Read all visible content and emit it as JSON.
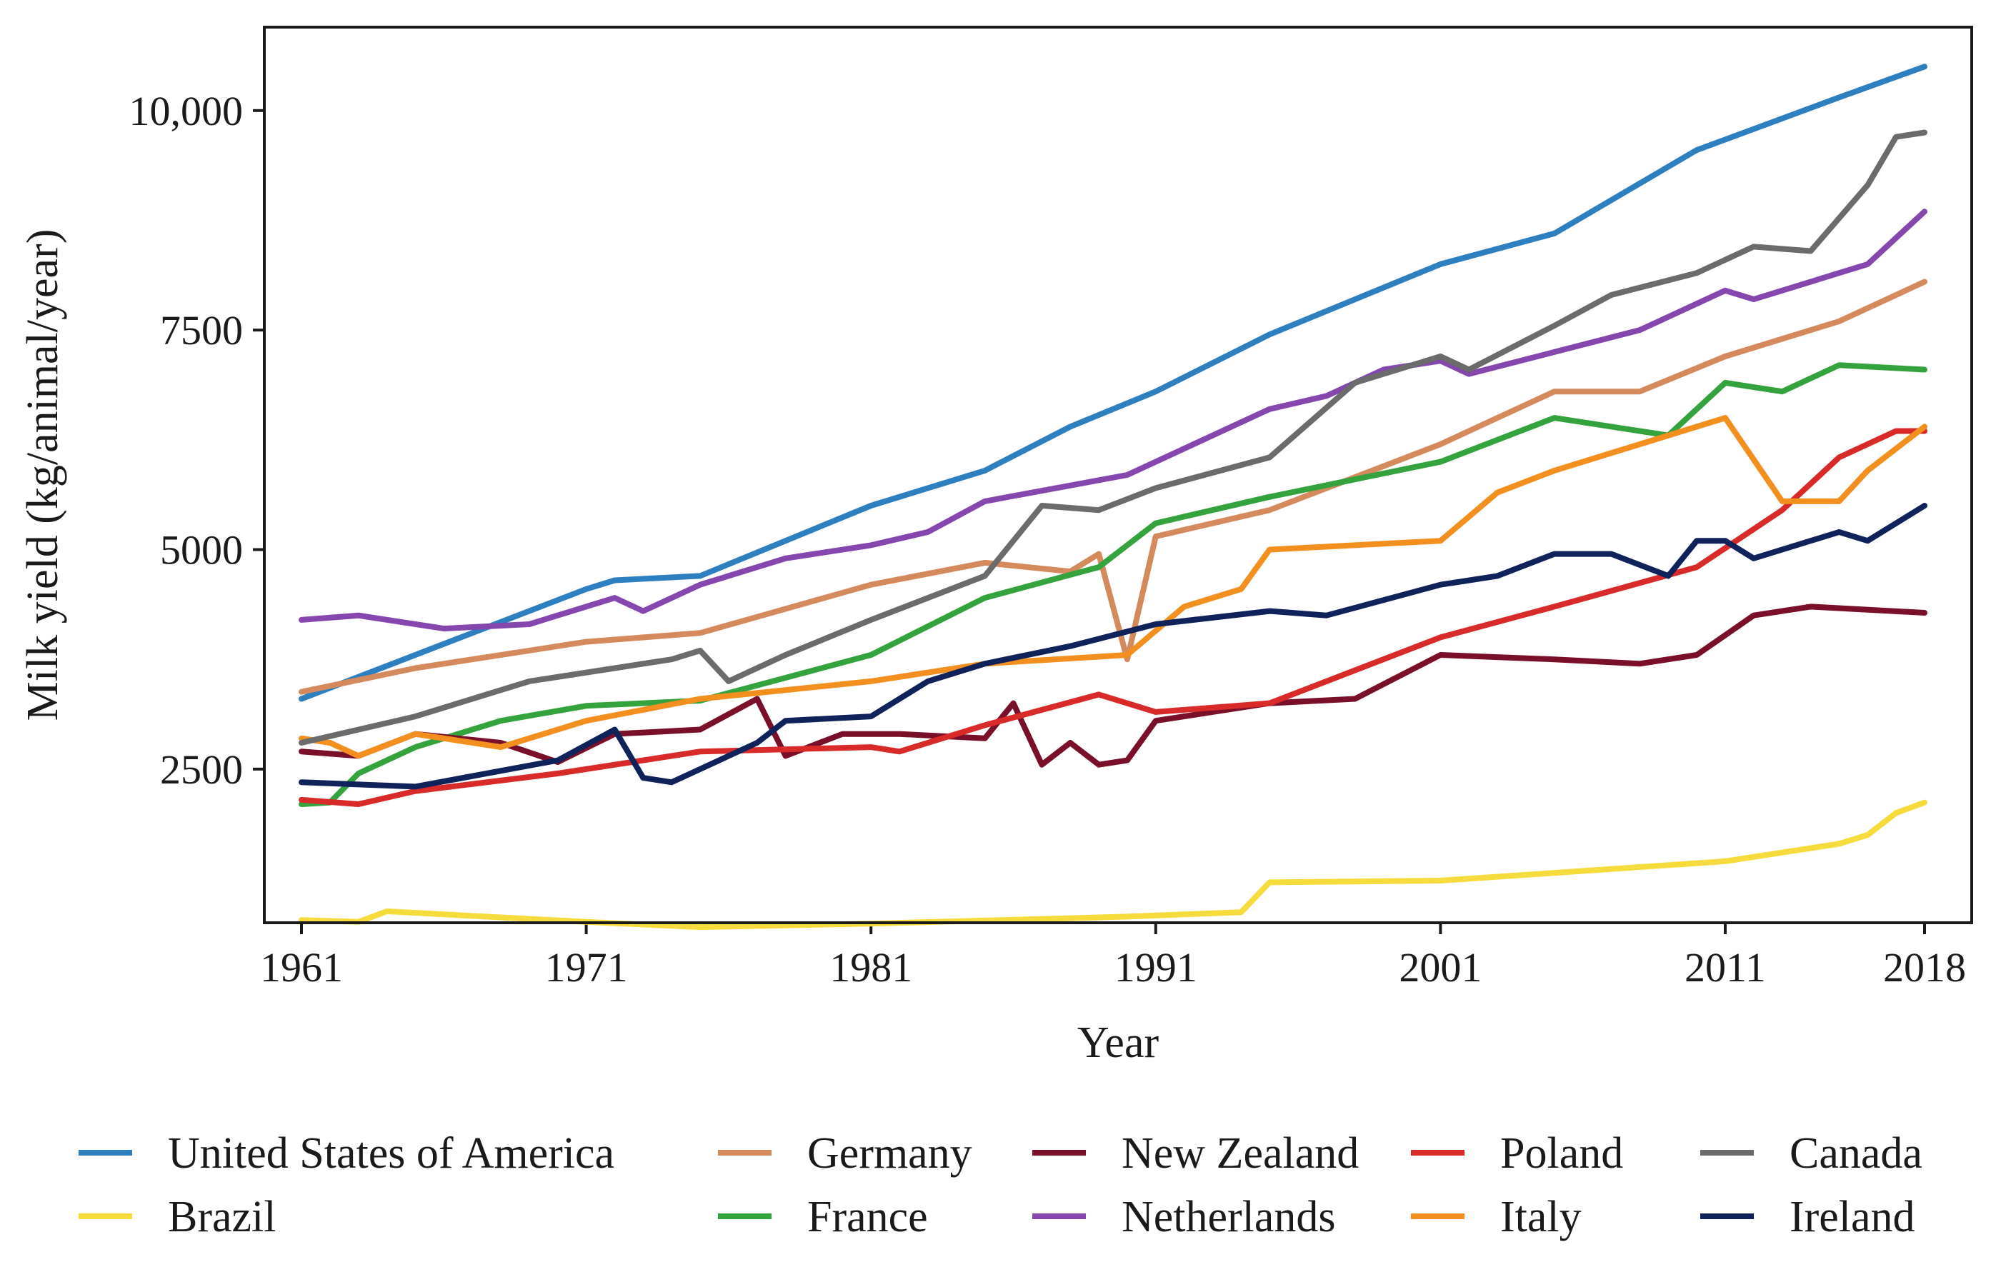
{
  "chart_data": {
    "type": "line",
    "title": "",
    "xlabel": "Year",
    "ylabel": "Milk yield (kg/animal/year)",
    "xlim": [
      1961,
      2018
    ],
    "ylim": [
      750,
      10950
    ],
    "xticks": [
      1961,
      1971,
      1981,
      1991,
      2001,
      2011,
      2018
    ],
    "xtick_labels": [
      "1961",
      "1971",
      "1981",
      "1991",
      "2001",
      "2011",
      "2018"
    ],
    "yticks": [
      2500,
      5000,
      7500,
      10000
    ],
    "ytick_labels": [
      "2500",
      "5000",
      "7500",
      "10,000"
    ],
    "grid": false,
    "legend_position": "bottom",
    "series": [
      {
        "name": "United States of America",
        "color": "#2e7fc0",
        "values": [
          [
            1961,
            3300
          ],
          [
            1965,
            3800
          ],
          [
            1971,
            4550
          ],
          [
            1972,
            4650
          ],
          [
            1975,
            4700
          ],
          [
            1981,
            5500
          ],
          [
            1985,
            5900
          ],
          [
            1988,
            6400
          ],
          [
            1991,
            6800
          ],
          [
            1995,
            7450
          ],
          [
            2001,
            8250
          ],
          [
            2005,
            8600
          ],
          [
            2010,
            9550
          ],
          [
            2015,
            10150
          ],
          [
            2018,
            10500
          ]
        ]
      },
      {
        "name": "Brazil",
        "color": "#f5dc3c",
        "values": [
          [
            1961,
            780
          ],
          [
            1963,
            760
          ],
          [
            1964,
            880
          ],
          [
            1971,
            760
          ],
          [
            1975,
            700
          ],
          [
            1981,
            740
          ],
          [
            1990,
            820
          ],
          [
            1994,
            870
          ],
          [
            1995,
            1210
          ],
          [
            2001,
            1230
          ],
          [
            2011,
            1450
          ],
          [
            2015,
            1650
          ],
          [
            2016,
            1750
          ],
          [
            2017,
            2000
          ],
          [
            2018,
            2120
          ]
        ]
      },
      {
        "name": "Germany",
        "color": "#d48a5c",
        "values": [
          [
            1961,
            3380
          ],
          [
            1965,
            3650
          ],
          [
            1971,
            3950
          ],
          [
            1975,
            4050
          ],
          [
            1981,
            4600
          ],
          [
            1985,
            4850
          ],
          [
            1988,
            4750
          ],
          [
            1989,
            4950
          ],
          [
            1990,
            3750
          ],
          [
            1991,
            5150
          ],
          [
            1995,
            5450
          ],
          [
            2001,
            6200
          ],
          [
            2005,
            6800
          ],
          [
            2008,
            6800
          ],
          [
            2011,
            7200
          ],
          [
            2015,
            7600
          ],
          [
            2018,
            8050
          ]
        ]
      },
      {
        "name": "France",
        "color": "#35a33d",
        "values": [
          [
            1961,
            2100
          ],
          [
            1962,
            2120
          ],
          [
            1963,
            2450
          ],
          [
            1965,
            2750
          ],
          [
            1968,
            3050
          ],
          [
            1971,
            3220
          ],
          [
            1975,
            3280
          ],
          [
            1981,
            3800
          ],
          [
            1985,
            4450
          ],
          [
            1989,
            4800
          ],
          [
            1991,
            5300
          ],
          [
            1995,
            5600
          ],
          [
            2001,
            6000
          ],
          [
            2005,
            6500
          ],
          [
            2009,
            6300
          ],
          [
            2011,
            6900
          ],
          [
            2013,
            6800
          ],
          [
            2015,
            7100
          ],
          [
            2018,
            7050
          ]
        ]
      },
      {
        "name": "New Zealand",
        "color": "#7a0f2a",
        "values": [
          [
            1961,
            2700
          ],
          [
            1963,
            2650
          ],
          [
            1965,
            2900
          ],
          [
            1968,
            2800
          ],
          [
            1970,
            2580
          ],
          [
            1972,
            2900
          ],
          [
            1975,
            2950
          ],
          [
            1977,
            3300
          ],
          [
            1978,
            2650
          ],
          [
            1980,
            2900
          ],
          [
            1982,
            2900
          ],
          [
            1985,
            2850
          ],
          [
            1986,
            3250
          ],
          [
            1987,
            2550
          ],
          [
            1988,
            2800
          ],
          [
            1989,
            2550
          ],
          [
            1990,
            2600
          ],
          [
            1991,
            3050
          ],
          [
            1995,
            3250
          ],
          [
            1998,
            3300
          ],
          [
            2001,
            3800
          ],
          [
            2005,
            3750
          ],
          [
            2008,
            3700
          ],
          [
            2010,
            3800
          ],
          [
            2012,
            4250
          ],
          [
            2014,
            4350
          ],
          [
            2018,
            4280
          ]
        ]
      },
      {
        "name": "Netherlands",
        "color": "#8547ad",
        "values": [
          [
            1961,
            4200
          ],
          [
            1963,
            4250
          ],
          [
            1966,
            4100
          ],
          [
            1969,
            4150
          ],
          [
            1972,
            4450
          ],
          [
            1973,
            4300
          ],
          [
            1975,
            4600
          ],
          [
            1978,
            4900
          ],
          [
            1981,
            5050
          ],
          [
            1983,
            5200
          ],
          [
            1985,
            5550
          ],
          [
            1990,
            5850
          ],
          [
            1995,
            6600
          ],
          [
            1997,
            6750
          ],
          [
            1999,
            7050
          ],
          [
            2001,
            7150
          ],
          [
            2002,
            7000
          ],
          [
            2005,
            7250
          ],
          [
            2008,
            7500
          ],
          [
            2011,
            7950
          ],
          [
            2012,
            7850
          ],
          [
            2016,
            8250
          ],
          [
            2018,
            8850
          ]
        ]
      },
      {
        "name": "Poland",
        "color": "#d92a2a",
        "values": [
          [
            1961,
            2150
          ],
          [
            1963,
            2100
          ],
          [
            1965,
            2250
          ],
          [
            1970,
            2450
          ],
          [
            1975,
            2700
          ],
          [
            1981,
            2750
          ],
          [
            1982,
            2700
          ],
          [
            1985,
            3000
          ],
          [
            1989,
            3350
          ],
          [
            1991,
            3150
          ],
          [
            1995,
            3250
          ],
          [
            2001,
            4000
          ],
          [
            2005,
            4350
          ],
          [
            2010,
            4800
          ],
          [
            2013,
            5450
          ],
          [
            2015,
            6050
          ],
          [
            2017,
            6350
          ],
          [
            2018,
            6350
          ]
        ]
      },
      {
        "name": "Italy",
        "color": "#f28f1e",
        "values": [
          [
            1961,
            2850
          ],
          [
            1962,
            2800
          ],
          [
            1963,
            2650
          ],
          [
            1965,
            2900
          ],
          [
            1968,
            2750
          ],
          [
            1971,
            3050
          ],
          [
            1975,
            3300
          ],
          [
            1981,
            3500
          ],
          [
            1985,
            3700
          ],
          [
            1990,
            3800
          ],
          [
            1992,
            4350
          ],
          [
            1994,
            4550
          ],
          [
            1995,
            5000
          ],
          [
            2001,
            5100
          ],
          [
            2003,
            5650
          ],
          [
            2005,
            5900
          ],
          [
            2008,
            6200
          ],
          [
            2011,
            6500
          ],
          [
            2013,
            5550
          ],
          [
            2015,
            5550
          ],
          [
            2016,
            5900
          ],
          [
            2018,
            6400
          ]
        ]
      },
      {
        "name": "Canada",
        "color": "#6b6b6b",
        "values": [
          [
            1961,
            2800
          ],
          [
            1965,
            3100
          ],
          [
            1969,
            3500
          ],
          [
            1972,
            3650
          ],
          [
            1974,
            3750
          ],
          [
            1975,
            3850
          ],
          [
            1976,
            3500
          ],
          [
            1978,
            3800
          ],
          [
            1981,
            4200
          ],
          [
            1985,
            4700
          ],
          [
            1987,
            5500
          ],
          [
            1989,
            5450
          ],
          [
            1991,
            5700
          ],
          [
            1995,
            6050
          ],
          [
            1998,
            6900
          ],
          [
            2001,
            7200
          ],
          [
            2002,
            7050
          ],
          [
            2005,
            7550
          ],
          [
            2007,
            7900
          ],
          [
            2010,
            8150
          ],
          [
            2012,
            8450
          ],
          [
            2014,
            8400
          ],
          [
            2016,
            9150
          ],
          [
            2017,
            9700
          ],
          [
            2018,
            9750
          ]
        ]
      },
      {
        "name": "Ireland",
        "color": "#0f2259",
        "values": [
          [
            1961,
            2350
          ],
          [
            1965,
            2300
          ],
          [
            1970,
            2600
          ],
          [
            1972,
            2950
          ],
          [
            1973,
            2400
          ],
          [
            1974,
            2350
          ],
          [
            1977,
            2800
          ],
          [
            1978,
            3050
          ],
          [
            1981,
            3100
          ],
          [
            1983,
            3500
          ],
          [
            1985,
            3700
          ],
          [
            1988,
            3900
          ],
          [
            1991,
            4150
          ],
          [
            1995,
            4300
          ],
          [
            1997,
            4250
          ],
          [
            2001,
            4600
          ],
          [
            2003,
            4700
          ],
          [
            2005,
            4950
          ],
          [
            2007,
            4950
          ],
          [
            2009,
            4700
          ],
          [
            2010,
            5100
          ],
          [
            2011,
            5100
          ],
          [
            2012,
            4900
          ],
          [
            2015,
            5200
          ],
          [
            2016,
            5100
          ],
          [
            2018,
            5500
          ]
        ]
      }
    ],
    "legend_rows": [
      [
        "United States of America",
        "Germany",
        "New Zealand",
        "Poland",
        "Canada"
      ],
      [
        "Brazil",
        "France",
        "Netherlands",
        "Italy",
        "Ireland"
      ]
    ]
  }
}
